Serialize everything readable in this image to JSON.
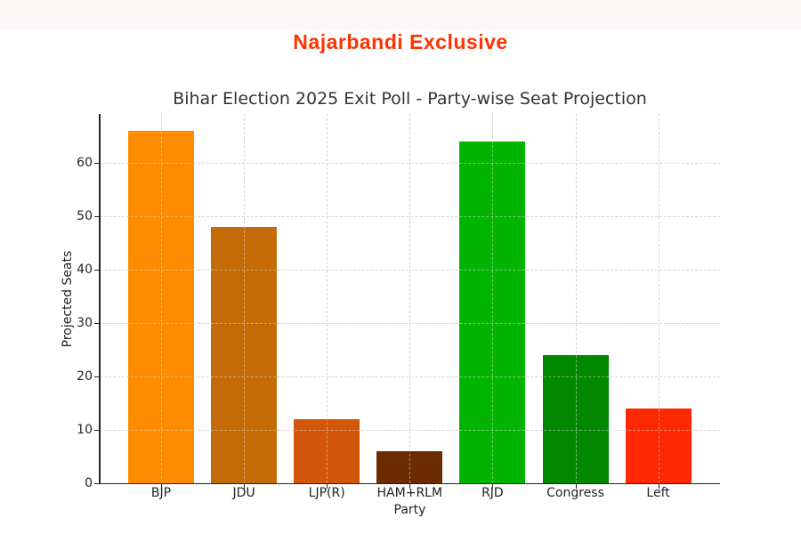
{
  "header": {
    "brand": "Najarbandi Exclusive",
    "brand_color": "#ff3300"
  },
  "chart_data": {
    "type": "bar",
    "title": "Bihar Election 2025 Exit Poll - Party-wise Seat Projection",
    "xlabel": "Party",
    "ylabel": "Projected Seats",
    "categories": [
      "BJP",
      "JDU",
      "LJP(R)",
      "HAM+RLM",
      "RJD",
      "Congress",
      "Left"
    ],
    "values": [
      66,
      48,
      12,
      6,
      64,
      24,
      14
    ],
    "colors": [
      "#ff8c00",
      "#c46a06",
      "#d2560a",
      "#6a2c00",
      "#00b400",
      "#008800",
      "#ff2800"
    ],
    "yticks": [
      0,
      10,
      20,
      30,
      40,
      50,
      60
    ],
    "ylim": [
      0,
      69.2
    ],
    "grid": true,
    "legend": null
  }
}
